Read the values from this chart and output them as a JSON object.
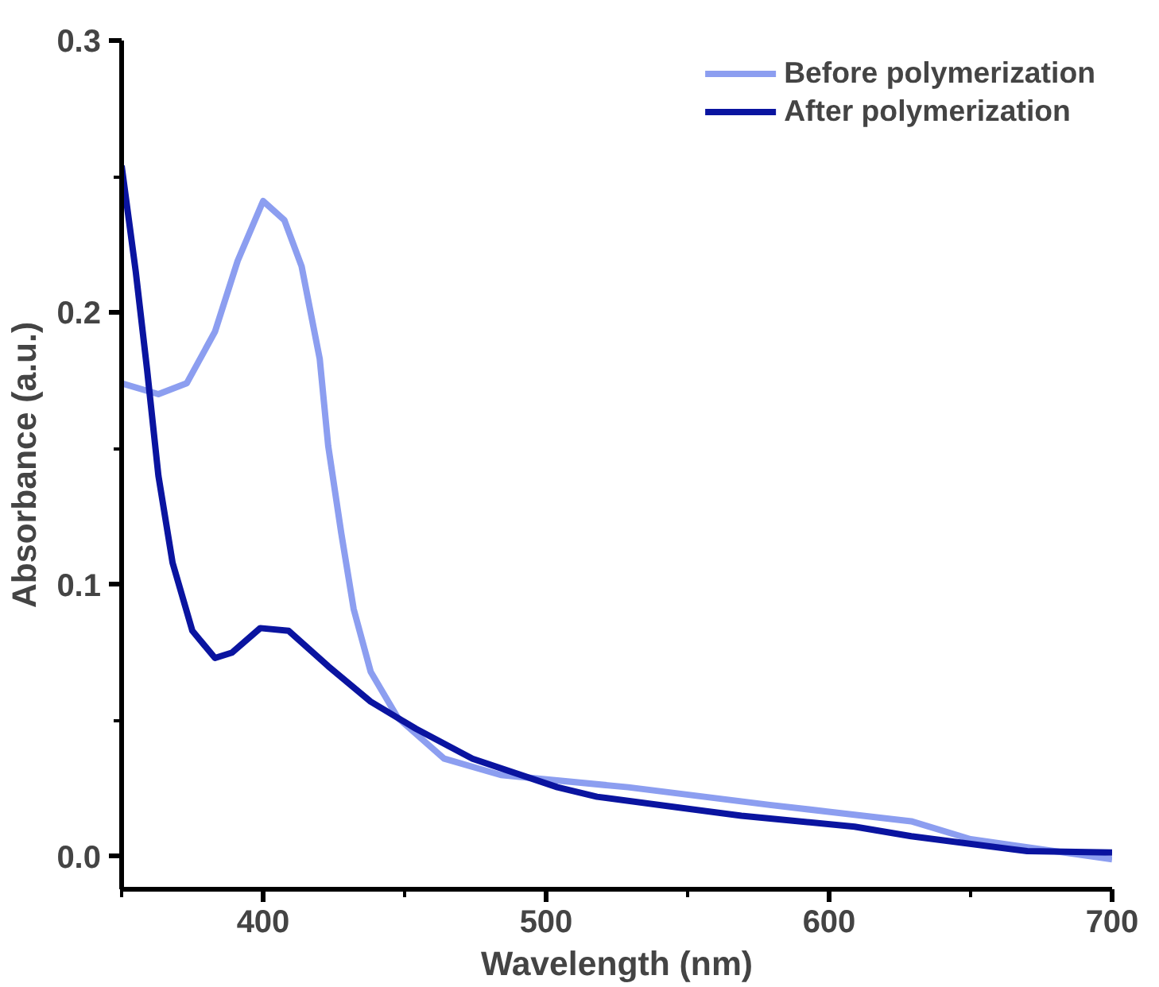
{
  "chart_data": {
    "type": "line",
    "xlabel": "Wavelength (nm)",
    "ylabel": "Absorbance (a.u.)",
    "xlim": [
      350,
      700
    ],
    "ylim": [
      -0.012,
      0.3
    ],
    "xticks": [
      {
        "value": 350,
        "label": null
      },
      400,
      {
        "value": 450,
        "label": null
      },
      500,
      {
        "value": 550,
        "label": null
      },
      600,
      {
        "value": 650,
        "label": null
      },
      700
    ],
    "yticks": [
      {
        "value": 0,
        "label": "0.0"
      },
      {
        "value": 0.05,
        "label": null
      },
      0.1,
      {
        "value": 0.15,
        "label": null
      },
      0.2,
      {
        "value": 0.25,
        "label": null
      },
      0.3
    ],
    "grid": false,
    "legend": "top right",
    "line_style": "solid",
    "marker": "none",
    "series": [
      {
        "name": "Before polymerization",
        "color": "#8c9ef0",
        "x": [
          350,
          363,
          373,
          383,
          391,
          400,
          407.5,
          413.6,
          420,
          423,
          427.6,
          432,
          438,
          447.6,
          464,
          484,
          529,
          579,
          629,
          650,
          700
        ],
        "values": [
          0.174,
          0.17,
          0.174,
          0.193,
          0.219,
          0.241,
          0.234,
          0.217,
          0.183,
          0.151,
          0.119,
          0.091,
          0.068,
          0.051,
          0.036,
          0.03,
          0.0255,
          0.019,
          0.013,
          0.0064,
          -0.001
        ]
      },
      {
        "name": "After polymerization",
        "color": "#0a14a0",
        "x": [
          350,
          355,
          359,
          363,
          368,
          375,
          383,
          389,
          399,
          409,
          423,
          438,
          454,
          474,
          504,
          518,
          569,
          609,
          629,
          670,
          700
        ],
        "values": [
          0.254,
          0.215,
          0.179,
          0.14,
          0.108,
          0.083,
          0.073,
          0.075,
          0.084,
          0.083,
          0.07,
          0.057,
          0.047,
          0.036,
          0.0255,
          0.022,
          0.015,
          0.011,
          0.0075,
          0.002,
          0.0015
        ]
      }
    ]
  }
}
